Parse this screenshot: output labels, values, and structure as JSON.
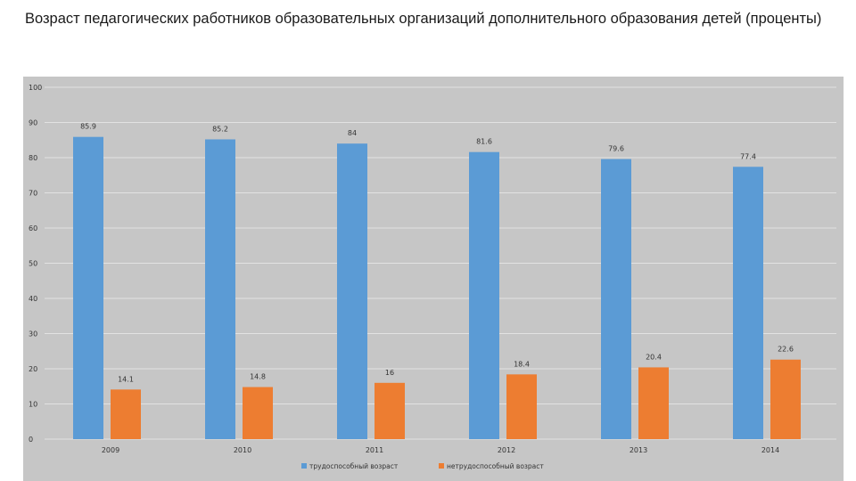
{
  "title": "Возраст педагогических работников образовательных организаций дополнительного образования детей (проценты)",
  "colors": {
    "background": "#ffffff",
    "plot_area": "#c6c6c6",
    "gridline": "#e2e2e2",
    "series_1": "#5b9bd5",
    "series_2": "#ed7d31"
  },
  "chart_data": {
    "type": "bar",
    "title": "Возраст педагогических работников образовательных организаций дополнительного образования детей (проценты)",
    "categories": [
      "2009",
      "2010",
      "2011",
      "2012",
      "2013",
      "2014"
    ],
    "series": [
      {
        "name": "трудоспособный возраст",
        "values": [
          85.9,
          85.2,
          84,
          81.6,
          79.6,
          77.4
        ],
        "value_labels": [
          "85.9",
          "85.2",
          "84",
          "81.6",
          "79.6",
          "77.4"
        ]
      },
      {
        "name": "нетрудоспособный возраст",
        "values": [
          14.1,
          14.8,
          16,
          18.4,
          20.4,
          22.6
        ],
        "value_labels": [
          "14.1",
          "14.8",
          "16",
          "18.4",
          "20.4",
          "22.6"
        ]
      }
    ],
    "ylim": [
      0,
      100
    ],
    "yticks": [
      "0",
      "10",
      "20",
      "30",
      "40",
      "50",
      "60",
      "70",
      "80",
      "90",
      "100"
    ],
    "xlabel": "",
    "ylabel": "",
    "grid": true,
    "legend_position": "bottom"
  }
}
